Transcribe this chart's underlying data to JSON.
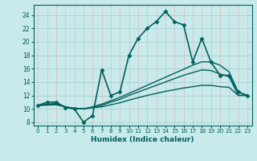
{
  "title": "",
  "xlabel": "Humidex (Indice chaleur)",
  "ylabel": "",
  "bg_color": "#c8eaea",
  "vgrid_color": "#e8b8b8",
  "hgrid_color": "#a0cccc",
  "line_color": "#006060",
  "xlim": [
    -0.5,
    23.5
  ],
  "ylim": [
    7.5,
    25.5
  ],
  "xticks": [
    0,
    1,
    2,
    3,
    4,
    5,
    6,
    7,
    8,
    9,
    10,
    11,
    12,
    13,
    14,
    15,
    16,
    17,
    18,
    19,
    20,
    21,
    22,
    23
  ],
  "yticks": [
    8,
    10,
    12,
    14,
    16,
    18,
    20,
    22,
    24
  ],
  "lines": [
    {
      "x": [
        0,
        1,
        2,
        3,
        4,
        5,
        6,
        7,
        8,
        9,
        10,
        11,
        12,
        13,
        14,
        15,
        16,
        17,
        18,
        19,
        20,
        21,
        22,
        23
      ],
      "y": [
        10.5,
        11.0,
        11.0,
        10.2,
        10.0,
        8.0,
        9.0,
        15.8,
        12.0,
        12.5,
        18.0,
        20.5,
        22.0,
        23.0,
        24.5,
        23.0,
        22.5,
        17.0,
        20.5,
        17.0,
        15.0,
        15.0,
        12.5,
        12.0
      ],
      "marker": "D",
      "markersize": 2.5,
      "linewidth": 1.2
    },
    {
      "x": [
        0,
        1,
        2,
        3,
        4,
        5,
        6,
        7,
        8,
        9,
        10,
        11,
        12,
        13,
        14,
        15,
        16,
        17,
        18,
        19,
        20,
        21,
        22,
        23
      ],
      "y": [
        10.5,
        10.7,
        10.8,
        10.3,
        10.0,
        10.0,
        10.3,
        10.7,
        11.2,
        11.7,
        12.3,
        12.9,
        13.5,
        14.1,
        14.7,
        15.3,
        15.9,
        16.5,
        17.0,
        17.0,
        16.5,
        15.5,
        12.5,
        12.0
      ],
      "marker": null,
      "markersize": 0,
      "linewidth": 1.0
    },
    {
      "x": [
        0,
        1,
        2,
        3,
        4,
        5,
        6,
        7,
        8,
        9,
        10,
        11,
        12,
        13,
        14,
        15,
        16,
        17,
        18,
        19,
        20,
        21,
        22,
        23
      ],
      "y": [
        10.5,
        10.6,
        10.7,
        10.3,
        10.0,
        10.0,
        10.2,
        10.5,
        11.0,
        11.4,
        12.0,
        12.5,
        13.0,
        13.5,
        14.0,
        14.5,
        15.0,
        15.4,
        15.8,
        15.7,
        15.2,
        14.8,
        12.0,
        12.0
      ],
      "marker": null,
      "markersize": 0,
      "linewidth": 1.0
    },
    {
      "x": [
        0,
        1,
        2,
        3,
        4,
        5,
        6,
        7,
        8,
        9,
        10,
        11,
        12,
        13,
        14,
        15,
        16,
        17,
        18,
        19,
        20,
        21,
        22,
        23
      ],
      "y": [
        10.5,
        10.55,
        10.6,
        10.3,
        10.1,
        10.0,
        10.15,
        10.3,
        10.6,
        10.9,
        11.3,
        11.65,
        12.0,
        12.3,
        12.6,
        12.85,
        13.1,
        13.3,
        13.5,
        13.5,
        13.3,
        13.2,
        12.0,
        12.0
      ],
      "marker": null,
      "markersize": 0,
      "linewidth": 1.0
    }
  ]
}
